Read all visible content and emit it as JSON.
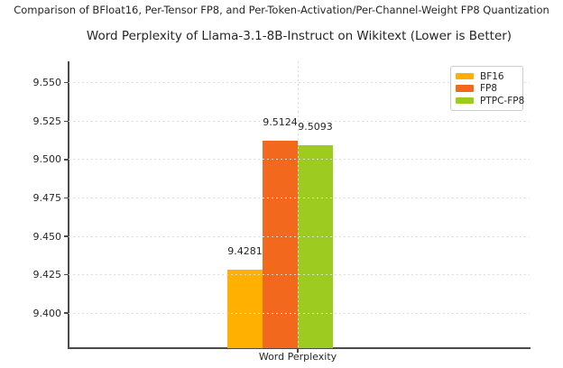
{
  "header": {
    "suptitle": "Comparison of BFloat16, Per-Tensor FP8, and Per-Token-Activation/Per-Channel-Weight FP8 Quantization"
  },
  "chart_data": {
    "type": "bar",
    "title": "Word Perplexity of Llama-3.1-8B-Instruct on Wikitext (Lower is Better)",
    "categories": [
      "Word Perplexity"
    ],
    "series": [
      {
        "name": "BF16",
        "color": "#FFB000",
        "values": [
          9.4281
        ],
        "value_label": "9.4281"
      },
      {
        "name": "FP8",
        "color": "#F2691D",
        "values": [
          9.5124
        ],
        "value_label": "9.5124"
      },
      {
        "name": "PTPC-FP8",
        "color": "#9ECB20",
        "values": [
          9.5093
        ],
        "value_label": "9.5093"
      }
    ],
    "xlabel": "",
    "ylabel": "",
    "ylim": [
      9.3772,
      9.5639
    ],
    "yticks": [
      9.4,
      9.425,
      9.45,
      9.475,
      9.5,
      9.525,
      9.55
    ],
    "ytick_labels": [
      "9.400",
      "9.425",
      "9.450",
      "9.475",
      "9.500",
      "9.525",
      "9.550"
    ],
    "grid": "dashed, drawn above bars",
    "legend_position": "upper right",
    "legend": [
      "BF16",
      "FP8",
      "PTPC-FP8"
    ]
  }
}
